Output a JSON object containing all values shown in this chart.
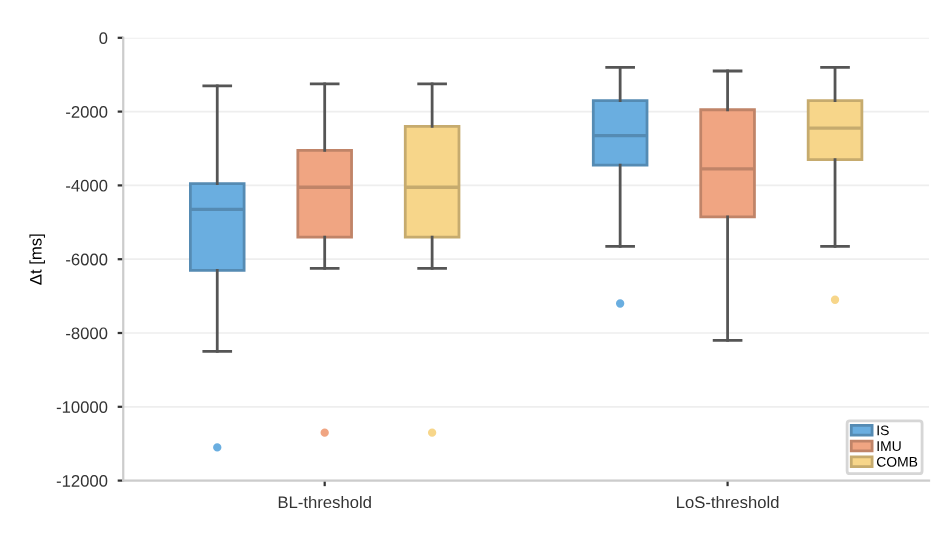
{
  "chart_data": {
    "type": "box",
    "ylabel": "Δt [ms]",
    "categories": [
      "BL-threshold",
      "LoS-threshold"
    ],
    "ylim": [
      -12000,
      0
    ],
    "yticks": [
      -12000,
      -10000,
      -8000,
      -6000,
      -4000,
      -2000,
      0
    ],
    "grid": "y",
    "legend": "bottom right",
    "series": [
      {
        "name": "IS",
        "color": "#6aaee0",
        "boxes": [
          {
            "low": -8500,
            "q1": -6300,
            "median": -4650,
            "q3": -3950,
            "high": -1300,
            "outliers": [
              -11100
            ]
          },
          {
            "low": -5650,
            "q1": -3450,
            "median": -2650,
            "q3": -1700,
            "high": -800,
            "outliers": [
              -7200
            ]
          }
        ]
      },
      {
        "name": "IMU",
        "color": "#f0a582",
        "boxes": [
          {
            "low": -6250,
            "q1": -5400,
            "median": -4050,
            "q3": -3050,
            "high": -1250,
            "outliers": [
              -10700
            ]
          },
          {
            "low": -8200,
            "q1": -4850,
            "median": -3550,
            "q3": -1950,
            "high": -900
          }
        ]
      },
      {
        "name": "COMB",
        "color": "#f7d68a",
        "boxes": [
          {
            "low": -6250,
            "q1": -5400,
            "median": -4050,
            "q3": -2400,
            "high": -1250,
            "outliers": [
              -10700
            ]
          },
          {
            "low": -5650,
            "q1": -3300,
            "median": -2450,
            "q3": -1700,
            "high": -800,
            "outliers": [
              -7100
            ]
          }
        ]
      }
    ]
  }
}
